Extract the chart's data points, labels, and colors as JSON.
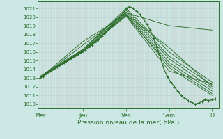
{
  "bg_color": "#cce8e4",
  "grid_color_v": "#c8b4b4",
  "grid_color_h": "#b8d8d4",
  "line_color": "#2d6e2d",
  "xlabel": "Pression niveau de la mer( hPa )",
  "ylim": [
    1009.5,
    1021.8
  ],
  "xlim": [
    -0.05,
    4.15
  ],
  "yticks": [
    1010,
    1011,
    1012,
    1013,
    1014,
    1015,
    1016,
    1017,
    1018,
    1019,
    1020,
    1021
  ],
  "xtick_labels": [
    "Mer",
    "Jeu",
    "Ven",
    "Sam",
    "D"
  ],
  "xtick_pos": [
    0.0,
    1.0,
    2.0,
    3.0,
    4.0
  ],
  "ensemble_lines": [
    [
      1013.0,
      1016.3,
      1021.0,
      1016.0,
      1012.5
    ],
    [
      1013.2,
      1016.3,
      1020.8,
      1015.5,
      1012.2
    ],
    [
      1013.1,
      1016.2,
      1020.6,
      1015.2,
      1011.8
    ],
    [
      1013.0,
      1016.1,
      1020.4,
      1014.8,
      1011.5
    ],
    [
      1013.0,
      1016.0,
      1020.2,
      1014.5,
      1011.2
    ],
    [
      1013.0,
      1016.0,
      1020.3,
      1014.2,
      1011.0
    ],
    [
      1013.0,
      1016.1,
      1020.1,
      1013.8,
      1012.3
    ],
    [
      1013.0,
      1016.8,
      1020.5,
      1019.0,
      1018.5
    ],
    [
      1013.0,
      1017.2,
      1020.3,
      1016.5,
      1012.0
    ]
  ],
  "main_x": [
    0.0,
    0.08,
    0.16,
    0.24,
    0.32,
    0.4,
    0.48,
    0.56,
    0.64,
    0.72,
    0.8,
    0.88,
    0.96,
    1.04,
    1.12,
    1.2,
    1.28,
    1.36,
    1.44,
    1.52,
    1.6,
    1.68,
    1.76,
    1.84,
    1.92,
    2.0,
    2.08,
    2.16,
    2.24,
    2.32,
    2.4,
    2.48,
    2.56,
    2.64,
    2.72,
    2.8,
    2.88,
    2.96,
    3.04,
    3.12,
    3.2,
    3.28,
    3.36,
    3.44,
    3.52,
    3.6,
    3.68,
    3.76,
    3.84,
    3.92,
    4.0,
    4.08
  ],
  "main_y": [
    1013.0,
    1013.2,
    1013.5,
    1013.8,
    1014.0,
    1014.3,
    1014.6,
    1014.8,
    1015.1,
    1015.3,
    1015.6,
    1015.8,
    1016.0,
    1016.2,
    1016.5,
    1016.8,
    1017.1,
    1017.4,
    1017.8,
    1018.2,
    1018.7,
    1019.1,
    1019.5,
    1019.9,
    1020.3,
    1021.0,
    1021.2,
    1021.0,
    1020.7,
    1020.3,
    1019.8,
    1019.2,
    1018.5,
    1017.6,
    1016.5,
    1015.3,
    1014.0,
    1013.2,
    1012.5,
    1012.0,
    1011.5,
    1011.0,
    1010.7,
    1010.4,
    1010.2,
    1010.0,
    1010.1,
    1010.3,
    1010.5,
    1010.4,
    1010.5,
    1010.6
  ]
}
